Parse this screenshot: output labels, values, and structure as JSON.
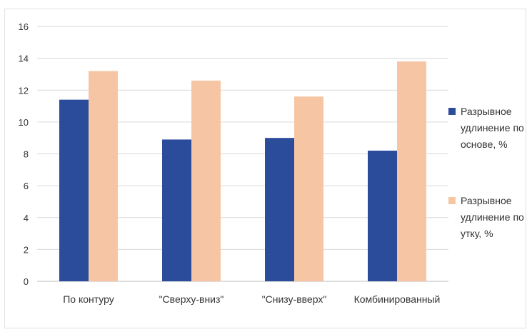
{
  "chart_data": {
    "type": "bar",
    "title": "",
    "xlabel": "",
    "ylabel": "",
    "ylim": [
      0,
      16
    ],
    "yticks": [
      0,
      2,
      4,
      6,
      8,
      10,
      12,
      14,
      16
    ],
    "grid": true,
    "legend_position": "right",
    "categories": [
      "По контуру",
      "\"Сверху-вниз\"",
      "\"Снизу-вверх\"",
      "Комбинированный"
    ],
    "series": [
      {
        "name": "Разрывное удлинение по основе, %",
        "legend_lines": [
          "Разрывное",
          "удлинение по",
          "основе, %"
        ],
        "color": "#2b4b9b",
        "values": [
          11.4,
          8.9,
          9.0,
          8.2
        ]
      },
      {
        "name": "Разрывное удлинение по утку, %",
        "legend_lines": [
          "Разрывное",
          "удлинение по",
          "утку, %"
        ],
        "color": "#f6c6a4",
        "values": [
          13.2,
          12.6,
          11.6,
          13.8
        ]
      }
    ]
  }
}
